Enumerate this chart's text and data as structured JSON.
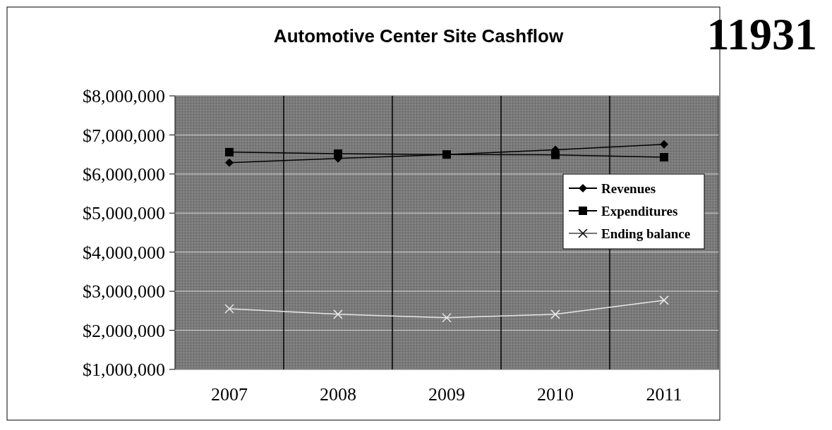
{
  "chart_data": {
    "type": "line",
    "title": "Automotive Center Site Cashflow",
    "categories": [
      "2007",
      "2008",
      "2009",
      "2010",
      "2011"
    ],
    "series": [
      {
        "name": "Revenues",
        "color": "#000000",
        "marker": "diamond",
        "values": [
          6290000,
          6400000,
          6500000,
          6620000,
          6760000
        ]
      },
      {
        "name": "Expenditures",
        "color": "#000000",
        "marker": "square",
        "values": [
          6560000,
          6520000,
          6500000,
          6490000,
          6430000
        ]
      },
      {
        "name": "Ending balance",
        "color": "#e8e8e8",
        "marker": "cross",
        "values": [
          2550000,
          2410000,
          2320000,
          2410000,
          2770000
        ]
      }
    ],
    "ylim": [
      1000000,
      8000000
    ],
    "yticks": [
      {
        "value": 1000000,
        "label": "$1,000,000"
      },
      {
        "value": 2000000,
        "label": "$2,000,000"
      },
      {
        "value": 3000000,
        "label": "$3,000,000"
      },
      {
        "value": 4000000,
        "label": "$4,000,000"
      },
      {
        "value": 5000000,
        "label": "$5,000,000"
      },
      {
        "value": 6000000,
        "label": "$6,000,000"
      },
      {
        "value": 7000000,
        "label": "$7,000,000"
      },
      {
        "value": 8000000,
        "label": "$8,000,000"
      }
    ],
    "grid": true,
    "legend": "right",
    "annotations": [
      "11931"
    ]
  }
}
